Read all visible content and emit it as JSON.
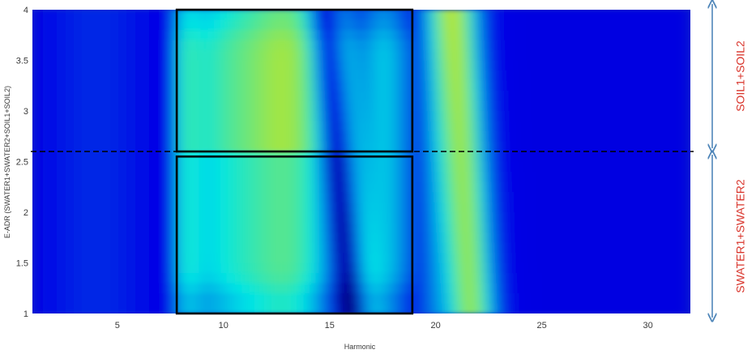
{
  "chart_data": {
    "type": "heatmap",
    "title": "",
    "xlabel": "Harmonic",
    "ylabel": "E-ADR (SWATER1+SWATER2+SOIL1+SOIL2)",
    "xlim": [
      1,
      32
    ],
    "ylim": [
      1,
      4
    ],
    "x_ticks": [
      5,
      10,
      15,
      20,
      25,
      30
    ],
    "y_ticks": [
      1,
      1.5,
      2,
      2.5,
      3,
      3.5,
      4
    ],
    "colormap": "jet",
    "grid": false,
    "legend": "none",
    "divider_y": 2.6,
    "highlight_boxes": [
      {
        "x": [
          7.8,
          18.9
        ],
        "y": [
          2.6,
          4.0
        ]
      },
      {
        "x": [
          7.8,
          18.9
        ],
        "y": [
          1.0,
          2.55
        ]
      }
    ],
    "regions": [
      {
        "label": "SOIL1+SOIL2",
        "y": [
          2.6,
          4.0
        ]
      },
      {
        "label": "SWATER1+SWATER2",
        "y": [
          1.0,
          2.6
        ]
      }
    ],
    "colors": {
      "annotation_text": "#d9342b",
      "arrow": "#4f86b9",
      "box": "#000000",
      "divider": "#000000"
    }
  }
}
